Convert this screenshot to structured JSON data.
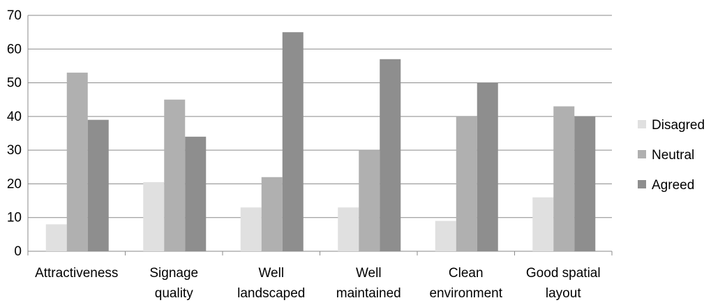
{
  "chart_data": {
    "type": "bar",
    "title": "",
    "xlabel": "",
    "ylabel": "",
    "ylim": [
      0,
      70
    ],
    "yticks": [
      0,
      10,
      20,
      30,
      40,
      50,
      60,
      70
    ],
    "grid": true,
    "legend_position": "right",
    "categories": [
      [
        "Attractiveness"
      ],
      [
        "Signage",
        "quality"
      ],
      [
        "Well",
        "landscaped"
      ],
      [
        "Well",
        "maintained"
      ],
      [
        "Clean",
        "environment"
      ],
      [
        "Good spatial",
        "layout"
      ]
    ],
    "series": [
      {
        "name": "Disagred",
        "color": "#e0e0e0",
        "values": [
          8,
          20.5,
          13,
          13,
          9,
          16
        ]
      },
      {
        "name": "Neutral",
        "color": "#b0b0b0",
        "values": [
          53,
          45,
          22,
          30,
          40,
          43
        ]
      },
      {
        "name": "Agreed",
        "color": "#8e8e8e",
        "values": [
          39,
          34,
          65,
          57,
          50,
          40
        ]
      }
    ]
  }
}
